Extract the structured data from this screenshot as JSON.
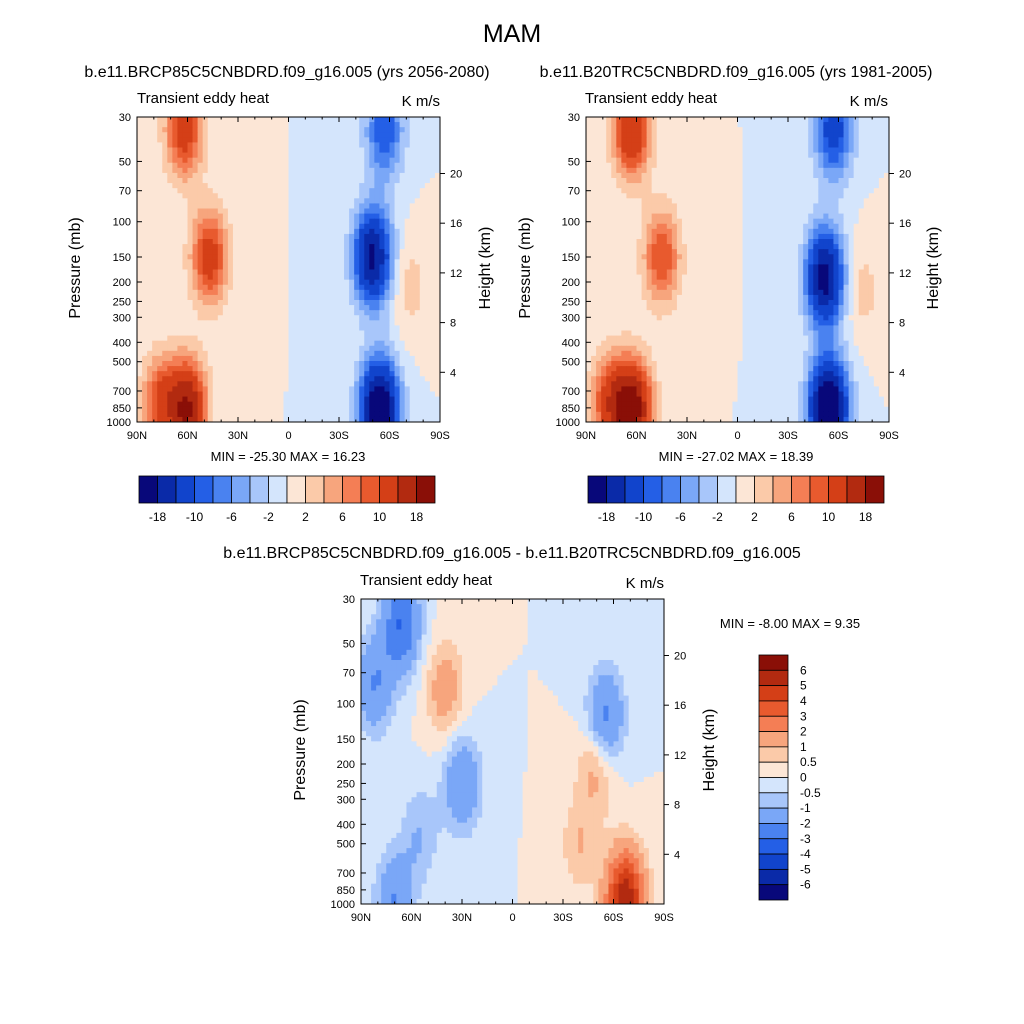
{
  "figure": {
    "title": "MAM",
    "palette_div": [
      "#08087a",
      "#0a2aa8",
      "#1144cc",
      "#245fe6",
      "#4a82f0",
      "#7aa7f7",
      "#a8c6fa",
      "#d4e5fc",
      "#fce6d6",
      "#fbcaa9",
      "#f7a57d",
      "#f47e55",
      "#e85a2e",
      "#d43f17",
      "#b22a10",
      "#8a0f07"
    ]
  },
  "chart_data": [
    {
      "type": "heatmap",
      "subtitle": "b.e11.BRCP85C5CNBDRD.f09_g16.005 (yrs 2056-2080)",
      "panel_label": "Transient eddy heat",
      "units": "K m/s",
      "xlabel": "",
      "ylabel": "Pressure (mb)",
      "ylabel_right": "Height (km)",
      "x_ticks": [
        "90N",
        "60N",
        "30N",
        "0",
        "30S",
        "60S",
        "90S"
      ],
      "y_ticks": [
        "30",
        "50",
        "70",
        "100",
        "150",
        "200",
        "250",
        "300",
        "400",
        "500",
        "700",
        "850",
        "1000"
      ],
      "height_ticks": [
        "20",
        "16",
        "12",
        "8",
        "4"
      ],
      "min_max": "MIN = -25.30  MAX = 16.23",
      "colorbar_labels": [
        "-18",
        "-10",
        "-6",
        "-2",
        "2",
        "6",
        "10",
        "18"
      ],
      "centers": [
        {
          "lat": 62,
          "p": 35,
          "v": 12
        },
        {
          "lat": 47,
          "p": 150,
          "v": 12
        },
        {
          "lat": 60,
          "p": 860,
          "v": 18
        },
        {
          "lat": 76,
          "p": 800,
          "v": 10
        },
        {
          "lat": -50,
          "p": 150,
          "v": -19
        },
        {
          "lat": -54,
          "p": 860,
          "v": -24
        },
        {
          "lat": -57,
          "p": 35,
          "v": -10
        },
        {
          "lat": -72,
          "p": 210,
          "v": 3
        }
      ]
    },
    {
      "type": "heatmap",
      "subtitle": "b.e11.B20TRC5CNBDRD.f09_g16.005 (yrs 1981-2005)",
      "panel_label": "Transient eddy heat",
      "units": "K m/s",
      "xlabel": "",
      "ylabel": "Pressure (mb)",
      "ylabel_right": "Height (km)",
      "x_ticks": [
        "90N",
        "60N",
        "30N",
        "0",
        "30S",
        "60S",
        "90S"
      ],
      "y_ticks": [
        "30",
        "50",
        "70",
        "100",
        "150",
        "200",
        "250",
        "300",
        "400",
        "500",
        "700",
        "850",
        "1000"
      ],
      "height_ticks": [
        "20",
        "16",
        "12",
        "8",
        "4"
      ],
      "min_max": "MIN = -27.02  MAX = 18.39",
      "colorbar_labels": [
        "-18",
        "-10",
        "-6",
        "-2",
        "2",
        "6",
        "10",
        "18"
      ],
      "centers": [
        {
          "lat": 63,
          "p": 35,
          "v": 14
        },
        {
          "lat": 45,
          "p": 150,
          "v": 10
        },
        {
          "lat": 62,
          "p": 860,
          "v": 20
        },
        {
          "lat": 76,
          "p": 800,
          "v": 11
        },
        {
          "lat": -52,
          "p": 190,
          "v": -20
        },
        {
          "lat": -54,
          "p": 860,
          "v": -26
        },
        {
          "lat": -57,
          "p": 35,
          "v": -12
        },
        {
          "lat": -74,
          "p": 220,
          "v": 3
        }
      ]
    },
    {
      "type": "heatmap",
      "subtitle": "b.e11.BRCP85C5CNBDRD.f09_g16.005 - b.e11.B20TRC5CNBDRD.f09_g16.005",
      "panel_label": "Transient eddy heat",
      "units": "K m/s",
      "xlabel": "",
      "ylabel": "Pressure (mb)",
      "ylabel_right": "Height (km)",
      "x_ticks": [
        "90N",
        "60N",
        "30N",
        "0",
        "30S",
        "60S",
        "90S"
      ],
      "y_ticks": [
        "30",
        "50",
        "70",
        "100",
        "150",
        "200",
        "250",
        "300",
        "400",
        "500",
        "700",
        "850",
        "1000"
      ],
      "height_ticks": [
        "20",
        "16",
        "12",
        "8",
        "4"
      ],
      "min_max": "MIN =  -8.00  MAX =   9.35",
      "colorbar_labels": [
        "6",
        "5",
        "4",
        "3",
        "2",
        "1",
        "0.5",
        "0",
        "-0.5",
        "-1",
        "-2",
        "-3",
        "-4",
        "-5",
        "-6"
      ],
      "centers": [
        {
          "lat": 66,
          "p": 40,
          "v": -3
        },
        {
          "lat": 82,
          "p": 80,
          "v": -2
        },
        {
          "lat": 40,
          "p": 85,
          "v": 1.5
        },
        {
          "lat": 55,
          "p": 450,
          "v": -1
        },
        {
          "lat": -40,
          "p": 500,
          "v": 1
        },
        {
          "lat": -55,
          "p": 120,
          "v": -2.5
        },
        {
          "lat": -50,
          "p": 200,
          "v": 1.5
        },
        {
          "lat": -67,
          "p": 960,
          "v": 6
        },
        {
          "lat": 70,
          "p": 960,
          "v": -2
        },
        {
          "lat": 30,
          "p": 250,
          "v": -2
        }
      ]
    }
  ]
}
